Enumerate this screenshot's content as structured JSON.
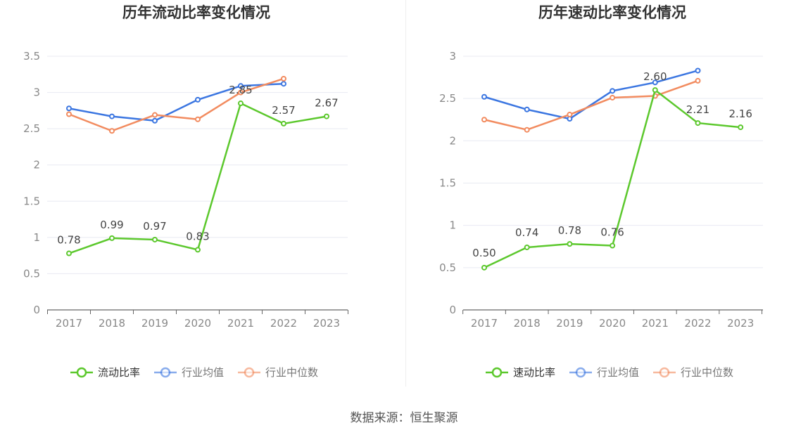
{
  "source_text": "数据来源：恒生聚源",
  "colors": {
    "primary": "#5cc82d",
    "avg": "#3b76e1",
    "median": "#f28b5f",
    "grid": "#e8eaf2",
    "axis": "#888888"
  },
  "chart_data": [
    {
      "type": "line",
      "title": "历年流动比率变化情况",
      "xlabel": "",
      "ylabel": "",
      "categories": [
        "2017",
        "2018",
        "2019",
        "2020",
        "2021",
        "2022",
        "2023"
      ],
      "ylim": [
        0,
        3.5
      ],
      "yticks": [
        0,
        0.5,
        1,
        1.5,
        2,
        2.5,
        3,
        3.5
      ],
      "ytick_labels": [
        "0",
        "0.5",
        "1",
        "1.5",
        "2",
        "2.5",
        "3",
        "3.5"
      ],
      "grid": true,
      "legend_position": "bottom",
      "series": [
        {
          "name": "流动比率",
          "color": "#5cc82d",
          "values": [
            0.78,
            0.99,
            0.97,
            0.83,
            2.85,
            2.57,
            2.67
          ],
          "labels": [
            "0.78",
            "0.99",
            "0.97",
            "0.83",
            "2.85",
            "2.57",
            "2.67"
          ]
        },
        {
          "name": "行业均值",
          "color": "#3b76e1",
          "values": [
            2.78,
            2.67,
            2.61,
            2.9,
            3.09,
            3.12,
            null
          ]
        },
        {
          "name": "行业中位数",
          "color": "#f28b5f",
          "values": [
            2.7,
            2.47,
            2.69,
            2.63,
            3.0,
            3.19,
            null
          ]
        }
      ]
    },
    {
      "type": "line",
      "title": "历年速动比率变化情况",
      "xlabel": "",
      "ylabel": "",
      "categories": [
        "2017",
        "2018",
        "2019",
        "2020",
        "2021",
        "2022",
        "2023"
      ],
      "ylim": [
        0,
        3
      ],
      "yticks": [
        0,
        0.5,
        1,
        1.5,
        2,
        2.5,
        3
      ],
      "ytick_labels": [
        "0",
        "0.5",
        "1",
        "1.5",
        "2",
        "2.5",
        "3"
      ],
      "grid": true,
      "legend_position": "bottom",
      "series": [
        {
          "name": "速动比率",
          "color": "#5cc82d",
          "values": [
            0.5,
            0.74,
            0.78,
            0.76,
            2.6,
            2.21,
            2.16
          ],
          "labels": [
            "0.50",
            "0.74",
            "0.78",
            "0.76",
            "2.60",
            "2.21",
            "2.16"
          ]
        },
        {
          "name": "行业均值",
          "color": "#3b76e1",
          "values": [
            2.52,
            2.37,
            2.26,
            2.59,
            2.69,
            2.83,
            null
          ]
        },
        {
          "name": "行业中位数",
          "color": "#f28b5f",
          "values": [
            2.25,
            2.13,
            2.31,
            2.51,
            2.53,
            2.71,
            null
          ]
        }
      ]
    }
  ]
}
